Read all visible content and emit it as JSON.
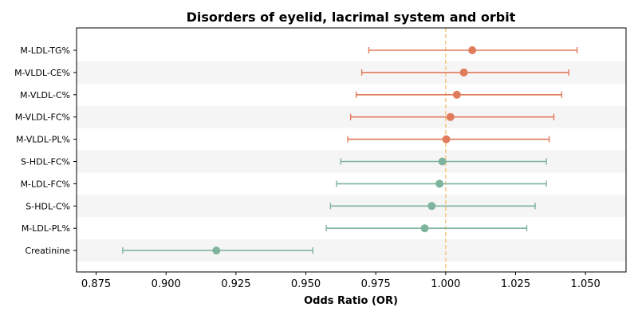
{
  "chart_data": {
    "type": "forest",
    "title": "Disorders of eyelid, lacrimal system and orbit",
    "xlabel": "Odds Ratio (OR)",
    "ylabel": "",
    "xlim": [
      0.868,
      1.0645
    ],
    "xticks": [
      "0.875",
      "0.900",
      "0.925",
      "0.950",
      "0.975",
      "1.000",
      "1.025",
      "1.050"
    ],
    "reference_line": 1.0,
    "reference_color": "#f5c77e",
    "band_color": "#f5f5f5",
    "grid": false,
    "colors": {
      "positive": "#e07b5b",
      "negative": "#7fb49c"
    },
    "rows": [
      {
        "label": "M-LDL-TG%",
        "or": 1.0095,
        "lower": 0.9725,
        "upper": 1.047,
        "group": "positive"
      },
      {
        "label": "M-VLDL-CE%",
        "or": 1.0065,
        "lower": 0.97,
        "upper": 1.044,
        "group": "positive"
      },
      {
        "label": "M-VLDL-C%",
        "or": 1.004,
        "lower": 0.968,
        "upper": 1.0415,
        "group": "positive"
      },
      {
        "label": "M-VLDL-FC%",
        "or": 1.0017,
        "lower": 0.966,
        "upper": 1.0387,
        "group": "positive"
      },
      {
        "label": "M-VLDL-PL%",
        "or": 1.0002,
        "lower": 0.965,
        "upper": 1.037,
        "group": "positive"
      },
      {
        "label": "S-HDL-FC%",
        "or": 0.9988,
        "lower": 0.9625,
        "upper": 1.036,
        "group": "negative"
      },
      {
        "label": "M-LDL-FC%",
        "or": 0.9978,
        "lower": 0.961,
        "upper": 1.036,
        "group": "negative"
      },
      {
        "label": "S-HDL-C%",
        "or": 0.995,
        "lower": 0.9588,
        "upper": 1.032,
        "group": "negative"
      },
      {
        "label": "M-LDL-PL%",
        "or": 0.9925,
        "lower": 0.9573,
        "upper": 1.029,
        "group": "negative"
      },
      {
        "label": "Creatinine",
        "or": 0.918,
        "lower": 0.8845,
        "upper": 0.9525,
        "group": "negative"
      }
    ]
  }
}
